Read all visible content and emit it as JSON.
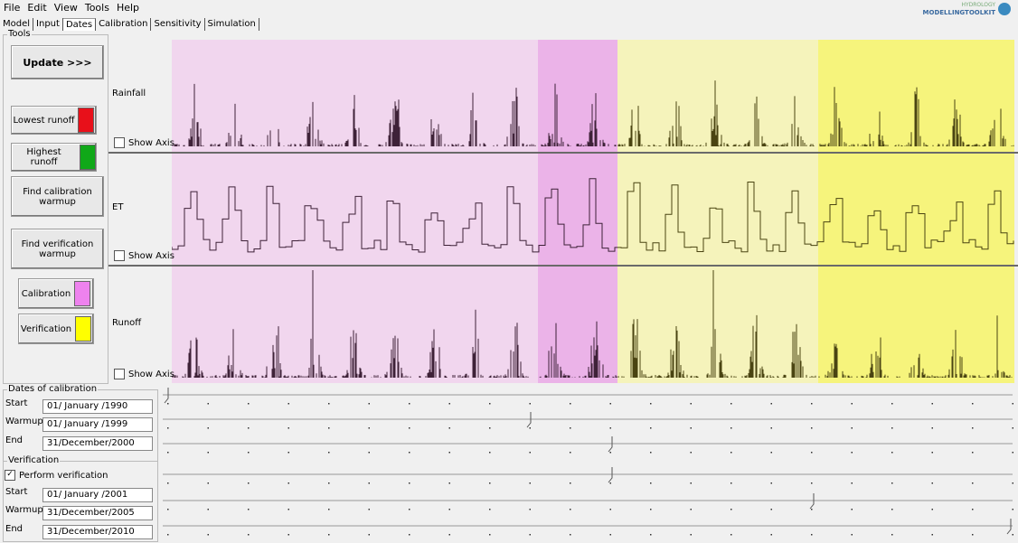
{
  "menu": [
    "File",
    "Edit",
    "View",
    "Tools",
    "Help"
  ],
  "logo": {
    "small": "HYDROLOGY",
    "big": "MODELLINGTOOLKIT"
  },
  "tabs": [
    "Model",
    "Input",
    "Dates",
    "Calibration",
    "Sensitivity",
    "Simulation"
  ],
  "tools": {
    "title": "Tools",
    "update": "Update >>>",
    "lowest": "Lowest runoff",
    "highest": "Highest runoff",
    "find_cal": "Find calibration warmup",
    "find_ver": "Find verification warmup",
    "calibration": "Calibration",
    "verification": "Verification"
  },
  "panels": [
    {
      "label": "Rainfall",
      "show_axis": "Show Axis"
    },
    {
      "label": "ET",
      "show_axis": "Show Axis"
    },
    {
      "label": "Runoff",
      "show_axis": "Show Axis"
    }
  ],
  "calibration": {
    "title": "Dates of calibration",
    "rows": [
      {
        "label": "Start",
        "value": "01/ January /1990"
      },
      {
        "label": "Warmup",
        "value": "01/ January /1999"
      },
      {
        "label": "End",
        "value": "31/December/2000"
      }
    ]
  },
  "verification": {
    "title": "Verification",
    "perform": "Perform verification",
    "rows": [
      {
        "label": "Start",
        "value": "01/ January /2001"
      },
      {
        "label": "Warmup",
        "value": "31/December/2005"
      },
      {
        "label": "End",
        "value": "31/December/2010"
      }
    ]
  }
}
